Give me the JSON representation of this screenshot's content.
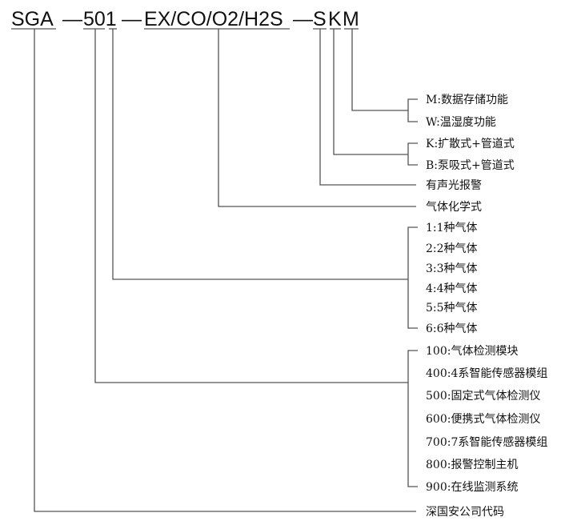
{
  "code": {
    "segments": [
      "SGA",
      "—",
      "501",
      "—",
      "EX/CO/O2/H2S",
      "—",
      "S",
      "K",
      "M"
    ]
  },
  "branches": {
    "company_code": "深国安公司代码",
    "product_type": [
      "100:气体检测模块",
      "400:4系智能传感器模组",
      "500:固定式气体检测仪",
      "600:便携式气体检测仪",
      "700:7系智能传感器模组",
      "800:报警控制主机",
      "900:在线监测系统"
    ],
    "gas_count": [
      "1:1种气体",
      "2:2种气体",
      "3:3种气体",
      "4:4种气体",
      "5:5种气体",
      "6:6种气体"
    ],
    "gas_formula": "气体化学式",
    "alarm": "有声光报警",
    "sampling": [
      "K:扩散式+管道式",
      "B:泵吸式+管道式"
    ],
    "function": [
      "M:数据存储功能",
      "W:温湿度功能"
    ]
  }
}
